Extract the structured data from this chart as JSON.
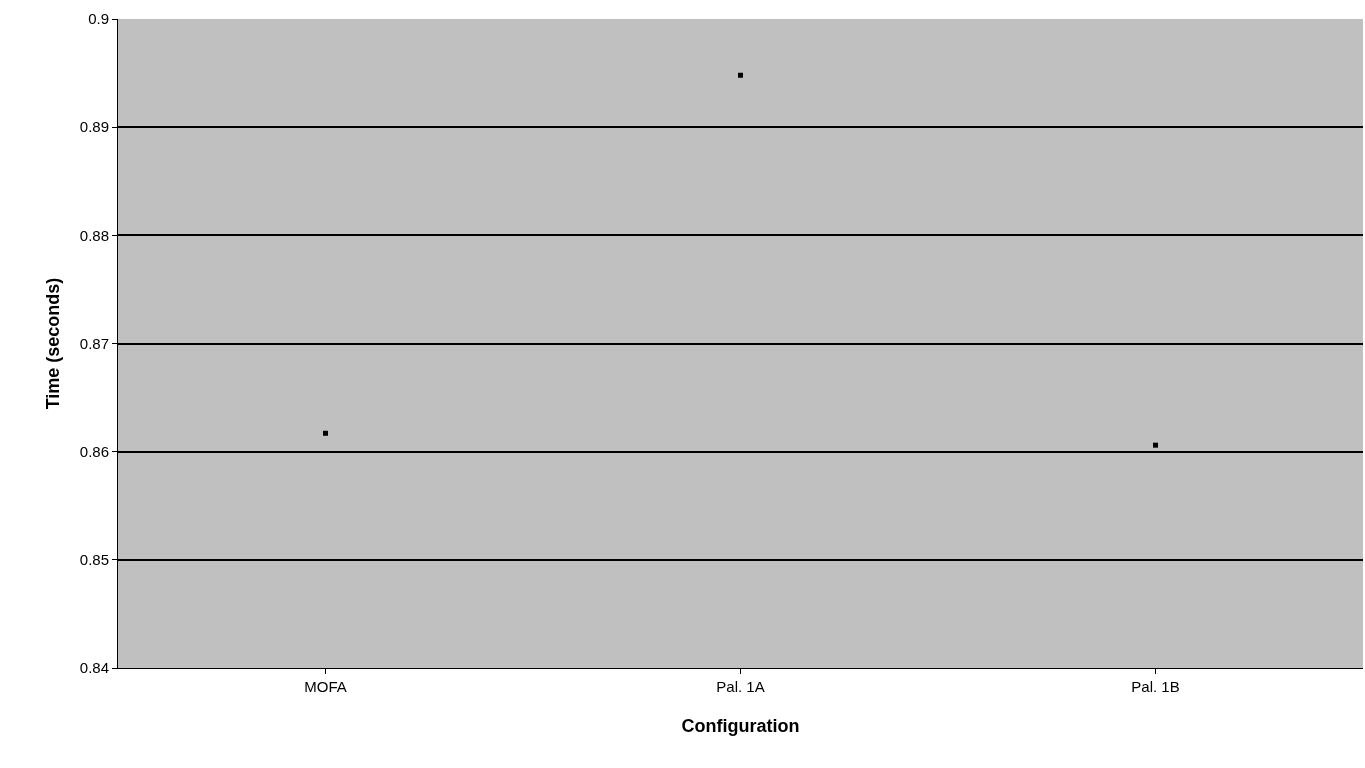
{
  "chart_data": {
    "type": "scatter",
    "xlabel": "Configuration",
    "ylabel": "Time (seconds)",
    "categories": [
      "MOFA",
      "Pal. 1A",
      "Pal. 1B"
    ],
    "series": [
      {
        "color": "#000000",
        "values": [
          0.8617,
          0.8948,
          0.8606
        ]
      }
    ],
    "ylim": [
      0.84,
      0.9
    ],
    "yticks": [
      0.84,
      0.85,
      0.86,
      0.87,
      0.88,
      0.89,
      0.9
    ],
    "grid": "y",
    "marker": "square",
    "legend": false
  }
}
